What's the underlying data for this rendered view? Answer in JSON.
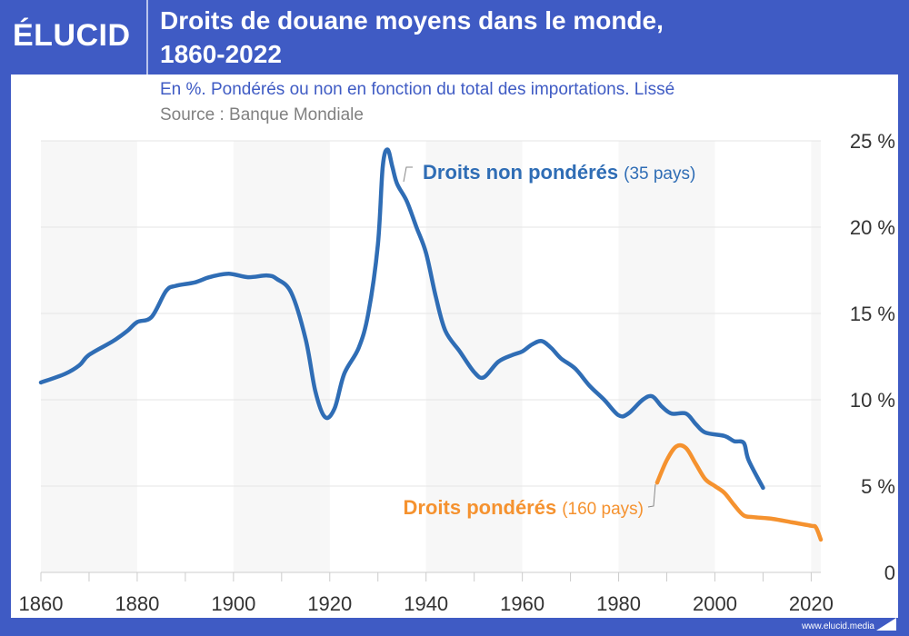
{
  "header": {
    "logo": "ÉLUCID",
    "title_line1": "Droits de douane moyens dans le monde,",
    "title_line2": "1860-2022",
    "subtitle": "En %. Pondérés ou non en fonction du total des importations. Lissé",
    "source": "Source : Banque Mondiale"
  },
  "footer": {
    "url": "www.elucid.media"
  },
  "colors": {
    "brand": "#3f5bc4",
    "series_unweighted": "#2f6db5",
    "series_weighted": "#f5922f",
    "band": "#f7f7f7"
  },
  "chart_data": {
    "type": "line",
    "title": "Droits de douane moyens dans le monde, 1860-2022",
    "xlim": [
      1860,
      2022
    ],
    "ylim": [
      0,
      25
    ],
    "x_ticks": [
      "1860",
      "1880",
      "1900",
      "1920",
      "1940",
      "1960",
      "1980",
      "2000",
      "2020"
    ],
    "y_ticks": [
      "0",
      "5 %",
      "10 %",
      "15 %",
      "20 %",
      "25 %"
    ],
    "grid": true,
    "shaded_bands": [
      [
        1860,
        1880
      ],
      [
        1900,
        1920
      ],
      [
        1940,
        1960
      ],
      [
        1980,
        2000
      ],
      [
        2020,
        2022
      ]
    ],
    "series": [
      {
        "name": "Droits non pondérés",
        "label_note": "(35 pays)",
        "x": [
          1860,
          1865,
          1868,
          1870,
          1875,
          1878,
          1880,
          1883,
          1886,
          1888,
          1892,
          1895,
          1899,
          1903,
          1907,
          1909,
          1912,
          1915,
          1917,
          1919,
          1921,
          1923,
          1926,
          1928,
          1930,
          1931,
          1932,
          1933,
          1934,
          1936,
          1938,
          1940,
          1942,
          1944,
          1947,
          1950,
          1952,
          1955,
          1958,
          1960,
          1962,
          1964,
          1966,
          1968,
          1971,
          1974,
          1977,
          1980,
          1982,
          1985,
          1987,
          1989,
          1991,
          1994,
          1996,
          1998,
          2002,
          2004,
          2006,
          2007,
          2010
        ],
        "y": [
          11.0,
          11.5,
          12.0,
          12.6,
          13.4,
          14.0,
          14.5,
          14.8,
          16.3,
          16.6,
          16.8,
          17.1,
          17.3,
          17.1,
          17.2,
          17.0,
          16.2,
          13.5,
          10.5,
          9.0,
          9.5,
          11.5,
          13.0,
          15.0,
          19.0,
          23.5,
          24.5,
          23.5,
          22.5,
          21.5,
          20.0,
          18.5,
          16.0,
          14.0,
          12.8,
          11.6,
          11.3,
          12.2,
          12.6,
          12.8,
          13.2,
          13.4,
          13.0,
          12.4,
          11.8,
          10.8,
          10.0,
          9.1,
          9.2,
          10.0,
          10.2,
          9.6,
          9.2,
          9.2,
          8.6,
          8.1,
          7.9,
          7.6,
          7.5,
          6.5,
          4.9
        ]
      },
      {
        "name": "Droits pondérés",
        "label_note": "(160 pays)",
        "x": [
          1988,
          1990,
          1992,
          1994,
          1996,
          1998,
          2000,
          2002,
          2004,
          2006,
          2008,
          2012,
          2016,
          2020,
          2021,
          2022
        ],
        "y": [
          5.2,
          6.5,
          7.3,
          7.2,
          6.3,
          5.4,
          5.0,
          4.6,
          3.9,
          3.3,
          3.2,
          3.1,
          2.9,
          2.7,
          2.6,
          1.9
        ]
      }
    ]
  }
}
